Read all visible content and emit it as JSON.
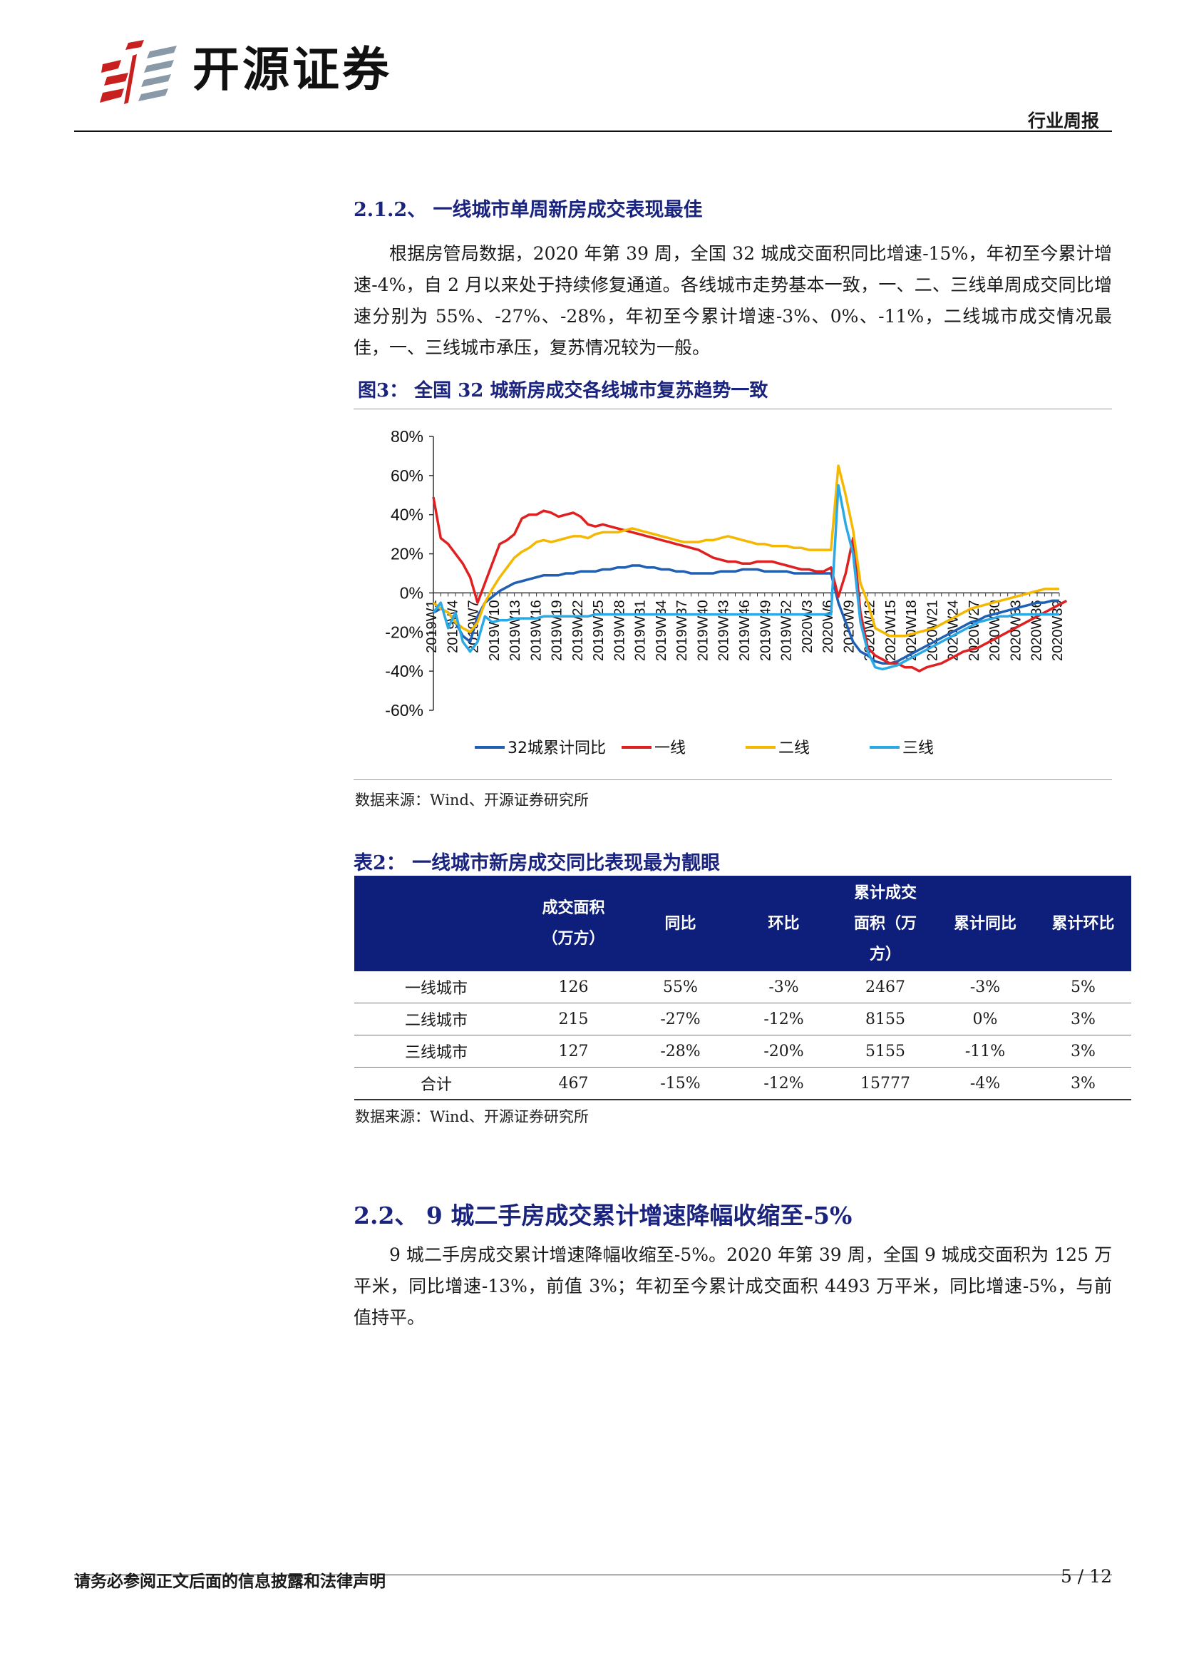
{
  "header": {
    "brand": "开源证券",
    "report_type": "行业周报"
  },
  "section_212": {
    "heading": "2.1.2、 一线城市单周新房成交表现最佳",
    "paragraph": "根据房管局数据，2020 年第 39 周，全国 32 城成交面积同比增速-15%，年初至今累计增速-4%，自 2 月以来处于持续修复通道。各线城市走势基本一致，一、二、三线单周成交同比增速分别为 55%、-27%、-28%，年初至今累计增速-3%、0%、-11%，二线城市成交情况最佳，一、三线城市承压，复苏情况较为一般。"
  },
  "figure3": {
    "title": "图3：  全国 32 城新房成交各线城市复苏趋势一致",
    "source": "数据来源：Wind、开源证券研究所"
  },
  "chart_data": {
    "type": "line",
    "title": "",
    "xlabel": "",
    "ylabel": "",
    "ylim": [
      -60,
      80
    ],
    "yticks": [
      "80%",
      "60%",
      "40%",
      "20%",
      "0%",
      "-20%",
      "-40%",
      "-60%"
    ],
    "x_tick_labels": [
      "2019W1",
      "2019W4",
      "2019W7",
      "2019W10",
      "2019W13",
      "2019W16",
      "2019W19",
      "2019W22",
      "2019W25",
      "2019W28",
      "2019W31",
      "2019W34",
      "2019W37",
      "2019W40",
      "2019W43",
      "2019W46",
      "2019W49",
      "2019W52",
      "2020W3",
      "2020W6",
      "2020W9",
      "2020W12",
      "2020W15",
      "2020W18",
      "2020W21",
      "2020W24",
      "2020W27",
      "2020W30",
      "2020W33",
      "2020W36",
      "2020W39"
    ],
    "legend_position": "bottom",
    "series": [
      {
        "name": "32城累计同比",
        "color": "#1f5fb4",
        "values": [
          -10,
          -8,
          -10,
          -15,
          -22,
          -25,
          -12,
          -5,
          -2,
          1,
          3,
          5,
          6,
          7,
          8,
          9,
          9,
          9,
          10,
          10,
          11,
          11,
          11,
          12,
          12,
          13,
          13,
          14,
          14,
          13,
          13,
          12,
          12,
          11,
          11,
          10,
          10,
          10,
          10,
          11,
          11,
          11,
          12,
          12,
          12,
          11,
          11,
          11,
          11,
          10,
          10,
          10,
          10,
          10,
          10,
          -5,
          -15,
          -25,
          -30,
          -32,
          -35,
          -36,
          -36,
          -35,
          -33,
          -31,
          -29,
          -27,
          -25,
          -23,
          -21,
          -19,
          -17,
          -15,
          -14,
          -12,
          -11,
          -10,
          -9,
          -8,
          -7,
          -6,
          -5,
          -5,
          -4,
          -4
        ]
      },
      {
        "name": "一线",
        "color": "#e02020",
        "values": [
          49,
          28,
          25,
          20,
          15,
          8,
          -5,
          5,
          15,
          25,
          27,
          30,
          38,
          40,
          40,
          42,
          41,
          39,
          40,
          41,
          39,
          35,
          34,
          35,
          34,
          33,
          32,
          31,
          30,
          29,
          28,
          27,
          26,
          25,
          24,
          23,
          22,
          20,
          18,
          17,
          16,
          16,
          15,
          15,
          16,
          16,
          16,
          15,
          14,
          13,
          12,
          12,
          11,
          11,
          13,
          -2,
          10,
          28,
          -10,
          -28,
          -32,
          -34,
          -36,
          -36,
          -38,
          -38,
          -40,
          -38,
          -37,
          -36,
          -34,
          -32,
          -30,
          -29,
          -28,
          -26,
          -24,
          -22,
          -20,
          -18,
          -16,
          -14,
          -12,
          -10,
          -8,
          -6,
          -4
        ]
      },
      {
        "name": "二线",
        "color": "#f5b800",
        "values": [
          -5,
          -8,
          -10,
          -15,
          -18,
          -20,
          -15,
          -5,
          2,
          8,
          13,
          18,
          21,
          23,
          26,
          27,
          26,
          27,
          28,
          29,
          29,
          28,
          30,
          31,
          31,
          31,
          32,
          33,
          32,
          31,
          30,
          29,
          28,
          27,
          26,
          26,
          26,
          27,
          27,
          28,
          29,
          28,
          27,
          26,
          25,
          25,
          24,
          24,
          24,
          23,
          23,
          22,
          22,
          22,
          22,
          65,
          50,
          32,
          5,
          -5,
          -18,
          -20,
          -22,
          -22,
          -22,
          -21,
          -20,
          -19,
          -18,
          -16,
          -14,
          -12,
          -10,
          -8,
          -7,
          -6,
          -5,
          -4,
          -3,
          -2,
          -1,
          0,
          1,
          2,
          2,
          2
        ]
      },
      {
        "name": "三线",
        "color": "#2aa9e6",
        "values": [
          -10,
          -5,
          -18,
          -10,
          -25,
          -30,
          -25,
          -12,
          -15,
          -14,
          -14,
          -13,
          -13,
          -13,
          -13,
          -12,
          -12,
          -12,
          -12,
          -12,
          -12,
          -12,
          -11,
          -11,
          -11,
          -11,
          -11,
          -11,
          -11,
          -11,
          -11,
          -11,
          -11,
          -11,
          -11,
          -11,
          -11,
          -11,
          -11,
          -11,
          -11,
          -11,
          -11,
          -11,
          -11,
          -11,
          -11,
          -11,
          -11,
          -11,
          -11,
          -11,
          -11,
          -11,
          -11,
          55,
          35,
          20,
          -15,
          -30,
          -38,
          -39,
          -38,
          -37,
          -35,
          -33,
          -31,
          -29,
          -27,
          -25,
          -23,
          -21,
          -19,
          -17,
          -15,
          -14,
          -13,
          -12,
          -12,
          -11,
          -11,
          -11,
          -11,
          -11,
          -11,
          -11
        ]
      }
    ]
  },
  "table2": {
    "title": "表2：  一线城市新房成交同比表现最为靓眼",
    "headers": [
      "",
      "成交面积（万方）",
      "同比",
      "环比",
      "累计成交面积（万方）",
      "累计同比",
      "累计环比"
    ],
    "rows": [
      [
        "一线城市",
        "126",
        "55%",
        "-3%",
        "2467",
        "-3%",
        "5%"
      ],
      [
        "二线城市",
        "215",
        "-27%",
        "-12%",
        "8155",
        "0%",
        "3%"
      ],
      [
        "三线城市",
        "127",
        "-28%",
        "-20%",
        "5155",
        "-11%",
        "3%"
      ],
      [
        "合计",
        "467",
        "-15%",
        "-12%",
        "15777",
        "-4%",
        "3%"
      ]
    ],
    "source": "数据来源：Wind、开源证券研究所"
  },
  "section_22": {
    "heading": "2.2、  9 城二手房成交累计增速降幅收缩至-5%",
    "paragraph": "9 城二手房成交累计增速降幅收缩至-5%。2020 年第 39 周，全国 9 城成交面积为 125 万平米，同比增速-13%，前值 3%；年初至今累计成交面积 4493 万平米，同比增速-5%，与前值持平。"
  },
  "footer": {
    "disclaimer": "请务必参阅正文后面的信息披露和法律声明",
    "page": "5 / 12"
  }
}
